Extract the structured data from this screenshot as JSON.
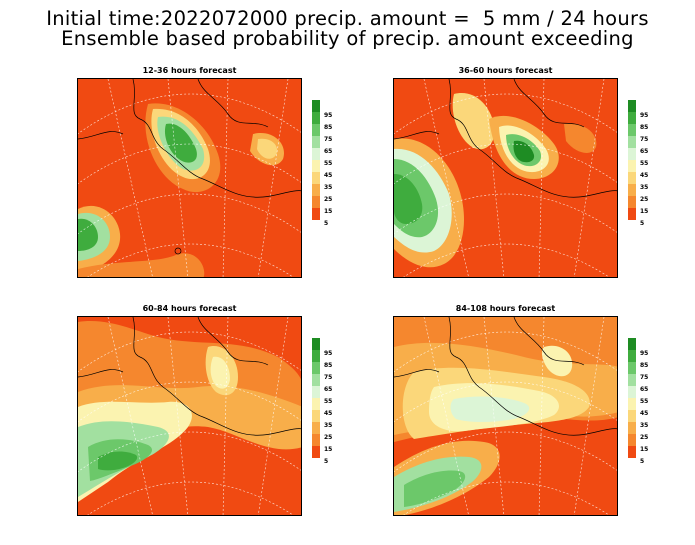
{
  "header": {
    "line1": "Initial time:2022072000 precip. amount =  5 mm / 24 hours",
    "line2": "Ensemble based probability of precip. amount exceeding"
  },
  "colorbar": {
    "levels": [
      "95",
      "85",
      "75",
      "65",
      "55",
      "45",
      "35",
      "25",
      "15",
      "5"
    ],
    "colors": [
      "#1e8c23",
      "#3fac3e",
      "#6cc86a",
      "#a2e0a0",
      "#dcf5d6",
      "#fbf3b0",
      "#fbd77a",
      "#f8ae4a",
      "#f5872e",
      "#f04a12"
    ]
  },
  "panels": [
    {
      "title": "12-36 hours forecast"
    },
    {
      "title": "36-60 hours forecast"
    },
    {
      "title": "60-84 hours forecast"
    },
    {
      "title": "84-108 hours forecast"
    }
  ]
}
